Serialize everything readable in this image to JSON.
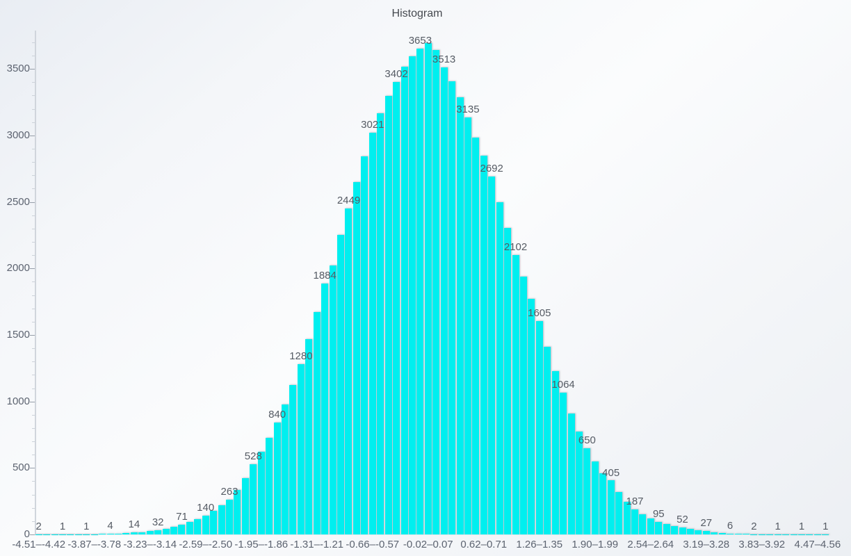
{
  "title": "Histogram",
  "chart_data": {
    "type": "bar",
    "title": "Histogram",
    "xlabel": "",
    "ylabel": "",
    "grid": false,
    "legend": false,
    "ylim": [
      0,
      3790
    ],
    "y_major_ticks": [
      0,
      500,
      1000,
      1500,
      2000,
      2500,
      3000,
      3500
    ],
    "y_minor_step": 100,
    "y_minor_max": 3700,
    "x_tick_interval": 7,
    "value_label_interval": 3,
    "x_tick_labels": [
      "-4.51–-4.42",
      "-3.87–-3.78",
      "-3.23–-3.14",
      "-2.59–-2.50",
      "-1.95–-1.86",
      "-1.31–-1.21",
      "-0.66–-0.57",
      "-0.02–0.07",
      "0.62–0.71",
      "1.26–1.35",
      "1.90–1.99",
      "2.54–2.64",
      "3.19–3.28",
      "3.83–3.92",
      "4.47–4.56"
    ],
    "values": [
      2,
      1,
      1,
      1,
      1,
      1,
      1,
      2,
      3,
      4,
      6,
      10,
      14,
      18,
      24,
      32,
      42,
      55,
      71,
      92,
      117,
      140,
      177,
      222,
      263,
      335,
      423,
      528,
      622,
      726,
      840,
      975,
      1122,
      1280,
      1469,
      1670,
      1884,
      2020,
      2250,
      2449,
      2649,
      2840,
      3021,
      3168,
      3296,
      3402,
      3514,
      3597,
      3653,
      3692,
      3640,
      3513,
      3409,
      3284,
      3135,
      2985,
      2845,
      2692,
      2500,
      2302,
      2102,
      1939,
      1772,
      1605,
      1412,
      1230,
      1064,
      911,
      773,
      650,
      550,
      462,
      405,
      317,
      245,
      187,
      150,
      120,
      95,
      79,
      64,
      52,
      42,
      34,
      27,
      17,
      11,
      6,
      4,
      3,
      2,
      2,
      1,
      1,
      1,
      1,
      1,
      1,
      1,
      1
    ],
    "labeled_values": [
      2,
      1,
      1,
      4,
      14,
      32,
      71,
      140,
      263,
      528,
      840,
      1280,
      1884,
      2449,
      3021,
      3402,
      3653,
      3513,
      3135,
      2692,
      2102,
      1605,
      1064,
      650,
      405,
      187,
      95,
      52,
      27,
      6,
      2,
      1,
      1,
      1
    ]
  },
  "colors": {
    "bar": "#00efef",
    "axis_line": "#d0d5dc",
    "tick_major": "#959da8",
    "tick_minor": "#ccd2d9",
    "axis_text": "#5c6370",
    "value_text": "#555b64",
    "title_text": "#45494f"
  }
}
